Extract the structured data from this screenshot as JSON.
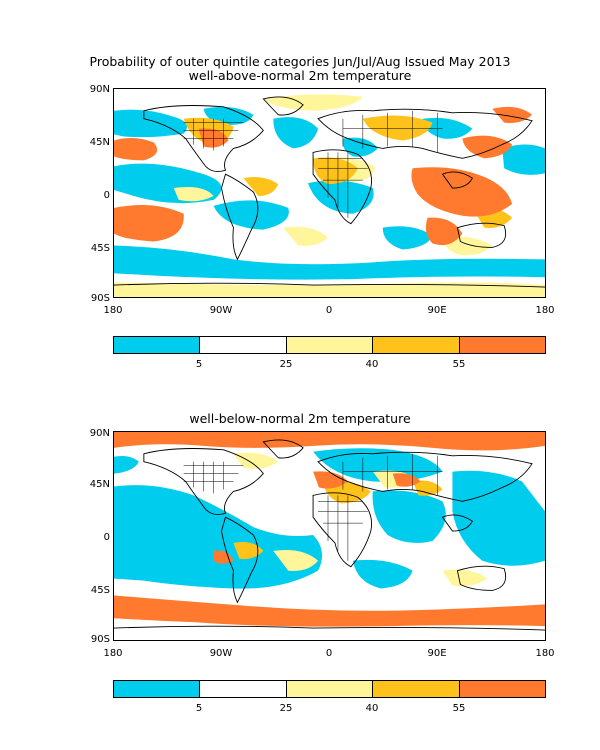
{
  "title": "Probability of outer quintile categories Jun/Jul/Aug Issued May 2013",
  "colors": {
    "cyan": "#00ccee",
    "white": "#ffffff",
    "light_yellow": "#fff59a",
    "gold": "#ffc21a",
    "orange": "#ff7a2e"
  },
  "panels": [
    {
      "subtitle": "well-above-normal 2m temperature",
      "lat_labels": [
        "90N",
        "45N",
        "0",
        "45S",
        "90S"
      ],
      "lon_labels": [
        "180",
        "90W",
        "0",
        "90E",
        "180"
      ]
    },
    {
      "subtitle": "well-below-normal 2m temperature",
      "lat_labels": [
        "90N",
        "45N",
        "0",
        "45S",
        "90S"
      ],
      "lon_labels": [
        "180",
        "90W",
        "0",
        "90E",
        "180"
      ]
    }
  ],
  "colorbar": {
    "labels": [
      "5",
      "25",
      "40",
      "55"
    ],
    "segment_colors": [
      "#00ccee",
      "#ffffff",
      "#fff59a",
      "#ffc21a",
      "#ff7a2e"
    ]
  }
}
